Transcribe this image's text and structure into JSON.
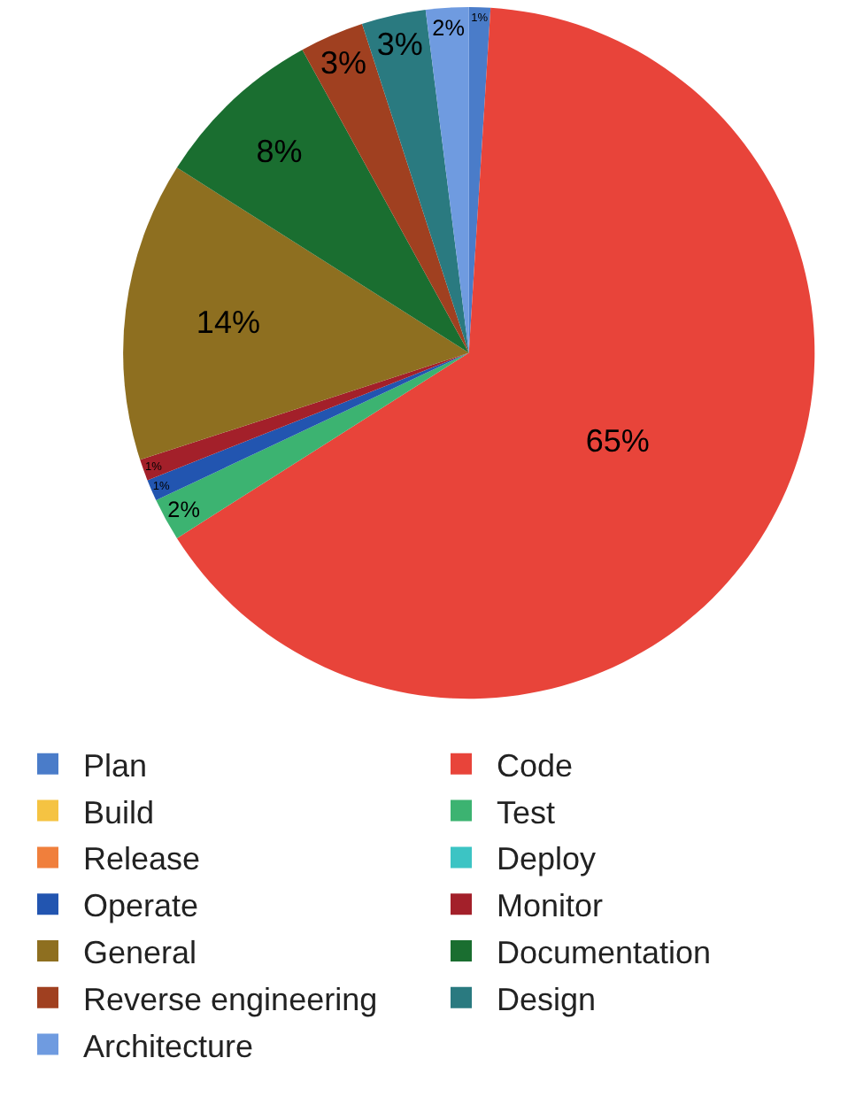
{
  "chart_data": {
    "type": "pie",
    "categories": [
      "Plan",
      "Code",
      "Build",
      "Test",
      "Release",
      "Deploy",
      "Operate",
      "Monitor",
      "General",
      "Documentation",
      "Reverse engineering",
      "Design",
      "Architecture"
    ],
    "values": [
      1,
      65,
      0,
      2,
      0,
      0,
      1,
      1,
      14,
      8,
      3,
      3,
      2
    ],
    "value_labels": [
      "1%",
      "65%",
      null,
      "2%",
      null,
      null,
      "1%",
      "1%",
      "14%",
      "8%",
      "3%",
      "3%",
      "2%"
    ],
    "colors": [
      "#4a7cc9",
      "#e8443a",
      "#f5c342",
      "#3cb371",
      "#f07f3c",
      "#3cc4c4",
      "#2255b0",
      "#a3202a",
      "#8e6f20",
      "#1a6e30",
      "#a04020",
      "#2a7a80",
      "#6f9be0"
    ],
    "legend": "bottom"
  }
}
